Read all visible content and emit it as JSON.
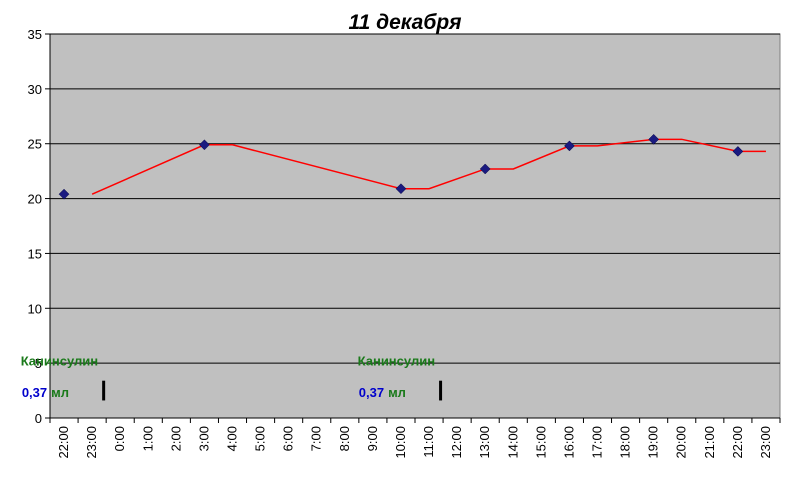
{
  "chart_data": {
    "type": "line",
    "title": "11 декабря",
    "xlabel": "",
    "ylabel": "",
    "ylim": [
      0,
      35
    ],
    "yticks": [
      "0",
      "5",
      "10",
      "15",
      "20",
      "25",
      "30",
      "35"
    ],
    "categories": [
      "22:00",
      "23:00",
      "0:00",
      "1:00",
      "2:00",
      "3:00",
      "4:00",
      "5:00",
      "6:00",
      "7:00",
      "8:00",
      "9:00",
      "10:00",
      "11:00",
      "12:00",
      "13:00",
      "14:00",
      "15:00",
      "16:00",
      "17:00",
      "18:00",
      "19:00",
      "20:00",
      "21:00",
      "22:00",
      "23:00"
    ],
    "grid": true,
    "plot_background": "#c0c0c0",
    "series": [
      {
        "type": "scatter",
        "marker": "diamond",
        "color": "#1a1a80",
        "points": [
          {
            "x": "22:00",
            "y": 20.4
          },
          {
            "x": "3:00",
            "y": 24.9
          },
          {
            "x": "10:00",
            "y": 20.9
          },
          {
            "x": "13:00",
            "y": 22.7
          },
          {
            "x": "16:00",
            "y": 24.8
          },
          {
            "x": "19:00",
            "y": 25.4
          },
          {
            "x": "22:00",
            "y": 24.3
          }
        ]
      },
      {
        "type": "line",
        "color": "#ff0000",
        "points": [
          {
            "x": "23:00",
            "y": 20.4
          },
          {
            "x": "3:00",
            "y": 24.9
          },
          {
            "x": "4:00",
            "y": 24.9
          },
          {
            "x": "10:00",
            "y": 20.9
          },
          {
            "x": "11:00",
            "y": 20.9
          },
          {
            "x": "13:00",
            "y": 22.7
          },
          {
            "x": "14:00",
            "y": 22.7
          },
          {
            "x": "16:00",
            "y": 24.8
          },
          {
            "x": "17:00",
            "y": 24.8
          },
          {
            "x": "19:00",
            "y": 25.4
          },
          {
            "x": "20:00",
            "y": 25.4
          },
          {
            "x": "22:00",
            "y": 24.3
          },
          {
            "x": "23:00",
            "y": 24.3
          }
        ]
      }
    ],
    "annotations": [
      {
        "label": "Канинсулин",
        "dose": "0,37",
        "unit": "мл",
        "at": "11:00"
      },
      {
        "label": "Канинсулин",
        "dose": "0,37",
        "unit": "мл",
        "at": "23:00"
      }
    ]
  }
}
